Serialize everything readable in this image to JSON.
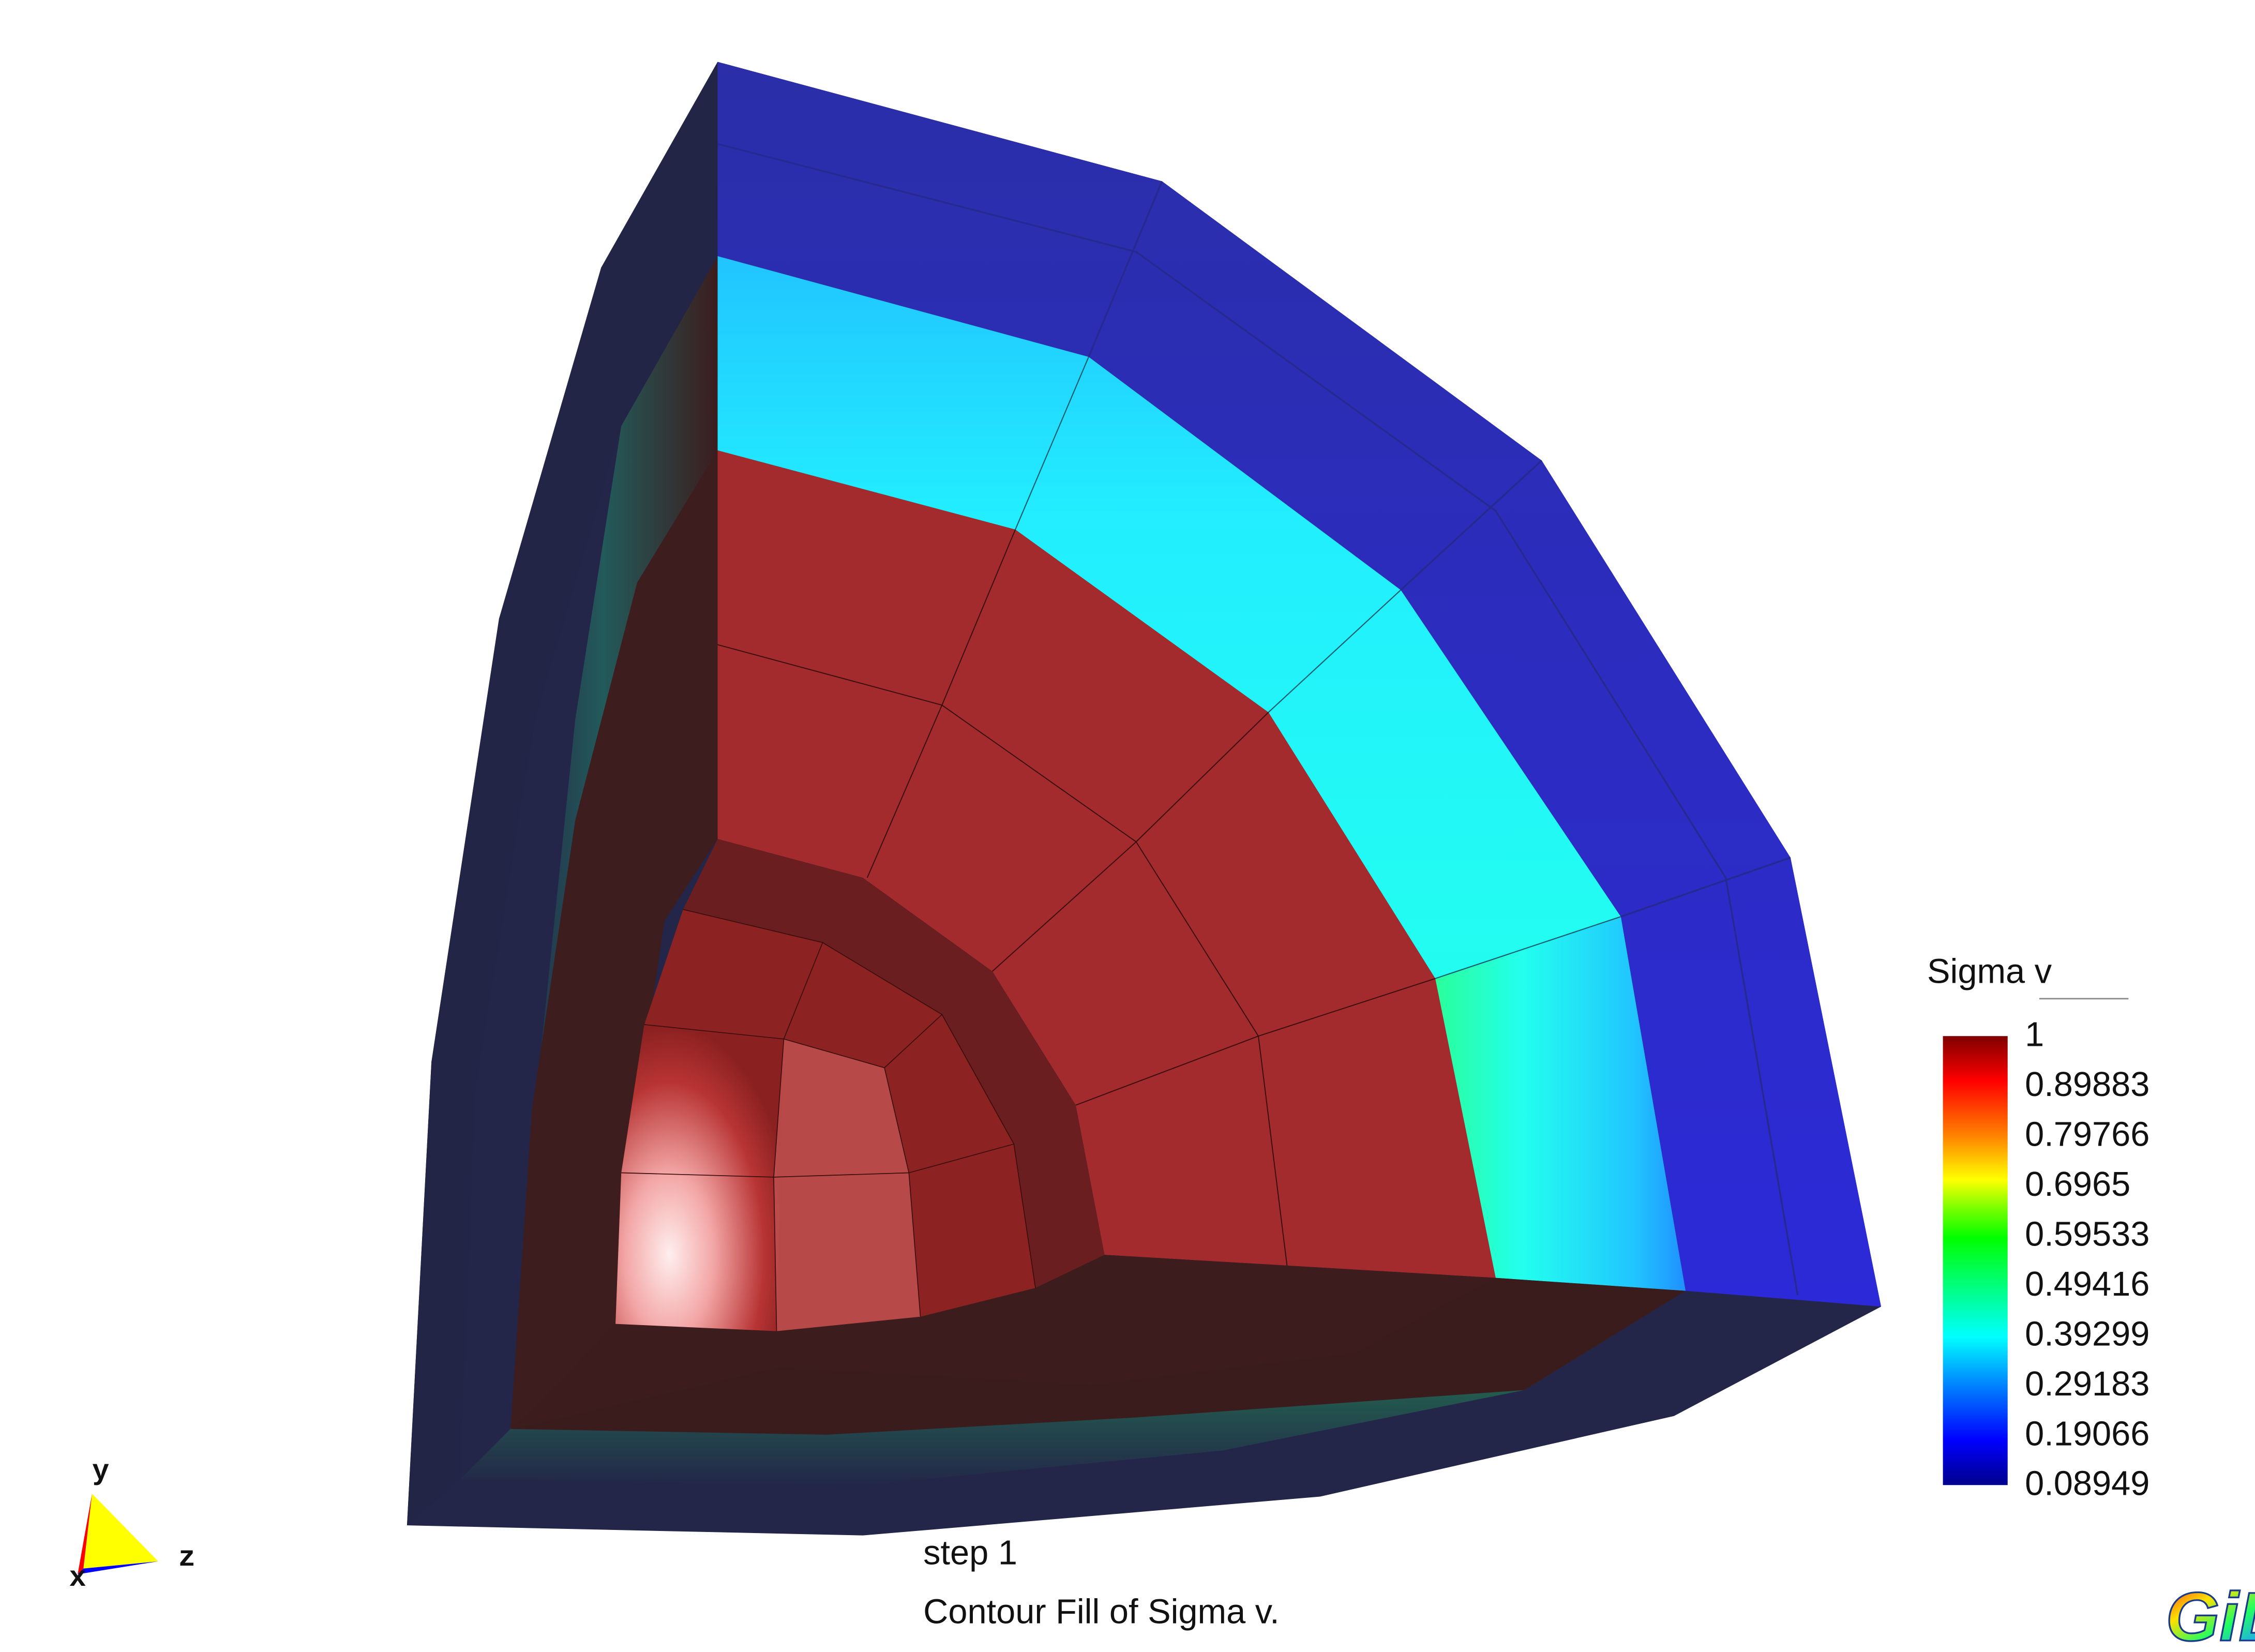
{
  "chart_data": {
    "type": "contour",
    "title": "Contour Fill of Sigma v.",
    "step_label": "step 1",
    "legend": {
      "title": "Sigma v",
      "ticks": [
        "1",
        "0.89883",
        "0.79766",
        "0.6965",
        "0.59533",
        "0.49416",
        "0.39299",
        "0.29183",
        "0.19066",
        "0.08949"
      ],
      "min": 0.08949,
      "max": 1,
      "colormap": [
        "#00008c",
        "#0000ff",
        "#0080ff",
        "#00ffff",
        "#00ff80",
        "#00ff00",
        "#80ff00",
        "#ffff00",
        "#ff8000",
        "#ff0000",
        "#800000"
      ]
    },
    "axes_triad": {
      "x": "x",
      "y": "y",
      "z": "z",
      "colors": {
        "x": "#ff0000",
        "y": "#ffff00",
        "z": "#0000ff"
      }
    },
    "logo": "GiD"
  },
  "colors": {
    "outer_shell_top": "#2c2cc8",
    "outer_shell_side": "#222448",
    "mid_band": "#22ffee",
    "core": "#a32b2b",
    "cavity": "#6e1e1e",
    "core_side": "#3e1d1d",
    "hotspot": "#ffe4e4"
  }
}
